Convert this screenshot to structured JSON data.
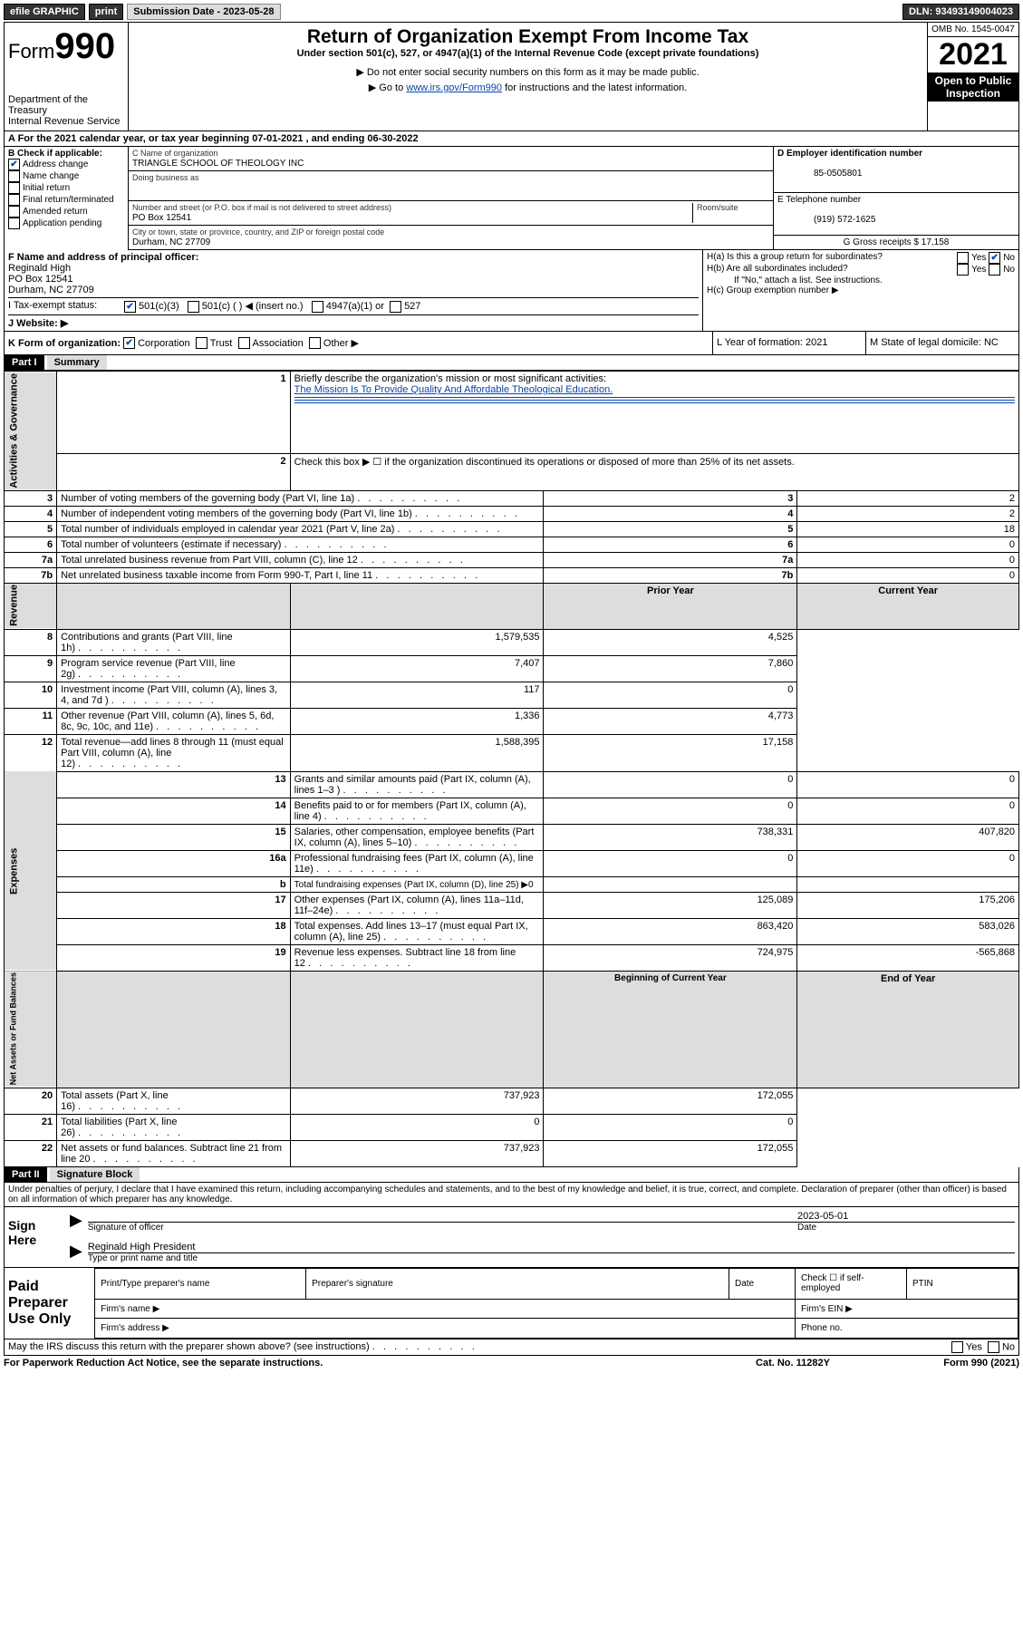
{
  "topbar": {
    "efile": "efile GRAPHIC",
    "print": "print",
    "subdate_label": "Submission Date - 2023-05-28",
    "dln": "DLN: 93493149004023"
  },
  "header": {
    "form_prefix": "Form",
    "form_no": "990",
    "dept": "Department of the Treasury",
    "irs": "Internal Revenue Service",
    "title": "Return of Organization Exempt From Income Tax",
    "sub1": "Under section 501(c), 527, or 4947(a)(1) of the Internal Revenue Code (except private foundations)",
    "sub2": "▶ Do not enter social security numbers on this form as it may be made public.",
    "sub3_pre": "▶ Go to ",
    "sub3_link": "www.irs.gov/Form990",
    "sub3_post": " for instructions and the latest information.",
    "omb": "OMB No. 1545-0047",
    "year": "2021",
    "open": "Open to Public Inspection"
  },
  "period": {
    "text": "A For the 2021 calendar year, or tax year beginning 07-01-2021   , and ending 06-30-2022"
  },
  "boxB": {
    "label": "B Check if applicable:",
    "items": [
      "Address change",
      "Name change",
      "Initial return",
      "Final return/terminated",
      "Amended return",
      "Application pending"
    ],
    "checked": [
      true,
      false,
      false,
      false,
      false,
      false
    ]
  },
  "boxC": {
    "label": "C Name of organization",
    "name": "TRIANGLE SCHOOL OF THEOLOGY INC",
    "dba_label": "Doing business as",
    "addr_label": "Number and street (or P.O. box if mail is not delivered to street address)",
    "room_label": "Room/suite",
    "addr": "PO Box 12541",
    "city_label": "City or town, state or province, country, and ZIP or foreign postal code",
    "city": "Durham, NC  27709"
  },
  "boxD": {
    "label": "D Employer identification number",
    "val": "85-0505801"
  },
  "boxE": {
    "label": "E Telephone number",
    "val": "(919) 572-1625"
  },
  "boxG": {
    "label": "G Gross receipts $ 17,158"
  },
  "boxF": {
    "label": "F Name and address of principal officer:",
    "name": "Reginald High",
    "addr": "PO Box 12541",
    "city": "Durham, NC  27709"
  },
  "boxH": {
    "ha": "H(a)  Is this a group return for subordinates?",
    "hb": "H(b)  Are all subordinates included?",
    "hb_note": "If \"No,\" attach a list. See instructions.",
    "hc": "H(c)  Group exemption number ▶"
  },
  "rowI": {
    "label": "I      Tax-exempt status:",
    "opts": [
      "501(c)(3)",
      "501(c) (  ) ◀ (insert no.)",
      "4947(a)(1) or",
      "527"
    ]
  },
  "rowJ": {
    "label": "J     Website: ▶"
  },
  "rowK": {
    "label": "K Form of organization:",
    "opts": [
      "Corporation",
      "Trust",
      "Association",
      "Other ▶"
    ]
  },
  "boxL": {
    "label": "L Year of formation: 2021"
  },
  "boxM": {
    "label": "M State of legal domicile: NC"
  },
  "part1": {
    "hdr": "Part I",
    "title": "Summary",
    "tabs": [
      "Activities & Governance",
      "Revenue",
      "Expenses",
      "Net Assets or\nFund Balances"
    ],
    "q1": "Briefly describe the organization's mission or most significant activities:",
    "mission": "The Mission Is To Provide Quality And Affordable Theological Education.",
    "q2": "Check this box ▶ ☐  if the organization discontinued its operations or disposed of more than 25% of its net assets.",
    "lines_gov": [
      {
        "n": "3",
        "t": "Number of voting members of the governing body (Part VI, line 1a)",
        "v": "2"
      },
      {
        "n": "4",
        "t": "Number of independent voting members of the governing body (Part VI, line 1b)",
        "v": "2"
      },
      {
        "n": "5",
        "t": "Total number of individuals employed in calendar year 2021 (Part V, line 2a)",
        "v": "18"
      },
      {
        "n": "6",
        "t": "Total number of volunteers (estimate if necessary)",
        "v": "0"
      },
      {
        "n": "7a",
        "t": "Total unrelated business revenue from Part VIII, column (C), line 12",
        "v": "0"
      },
      {
        "n": "7b",
        "t": "Net unrelated business taxable income from Form 990-T, Part I, line 11",
        "v": "0"
      }
    ],
    "col_hdr": {
      "prior": "Prior Year",
      "curr": "Current Year",
      "beg": "Beginning of Current Year",
      "end": "End of Year"
    },
    "lines_rev": [
      {
        "n": "8",
        "t": "Contributions and grants (Part VIII, line 1h)",
        "p": "1,579,535",
        "c": "4,525"
      },
      {
        "n": "9",
        "t": "Program service revenue (Part VIII, line 2g)",
        "p": "7,407",
        "c": "7,860"
      },
      {
        "n": "10",
        "t": "Investment income (Part VIII, column (A), lines 3, 4, and 7d )",
        "p": "117",
        "c": "0"
      },
      {
        "n": "11",
        "t": "Other revenue (Part VIII, column (A), lines 5, 6d, 8c, 9c, 10c, and 11e)",
        "p": "1,336",
        "c": "4,773"
      },
      {
        "n": "12",
        "t": "Total revenue—add lines 8 through 11 (must equal Part VIII, column (A), line 12)",
        "p": "1,588,395",
        "c": "17,158"
      }
    ],
    "lines_exp": [
      {
        "n": "13",
        "t": "Grants and similar amounts paid (Part IX, column (A), lines 1–3 )",
        "p": "0",
        "c": "0"
      },
      {
        "n": "14",
        "t": "Benefits paid to or for members (Part IX, column (A), line 4)",
        "p": "0",
        "c": "0"
      },
      {
        "n": "15",
        "t": "Salaries, other compensation, employee benefits (Part IX, column (A), lines 5–10)",
        "p": "738,331",
        "c": "407,820"
      },
      {
        "n": "16a",
        "t": "Professional fundraising fees (Part IX, column (A), line 11e)",
        "p": "0",
        "c": "0"
      },
      {
        "n": "b",
        "t": "Total fundraising expenses (Part IX, column (D), line 25) ▶0",
        "p": "",
        "c": "",
        "shade": true
      },
      {
        "n": "17",
        "t": "Other expenses (Part IX, column (A), lines 11a–11d, 11f–24e)",
        "p": "125,089",
        "c": "175,206"
      },
      {
        "n": "18",
        "t": "Total expenses. Add lines 13–17 (must equal Part IX, column (A), line 25)",
        "p": "863,420",
        "c": "583,026"
      },
      {
        "n": "19",
        "t": "Revenue less expenses. Subtract line 18 from line 12",
        "p": "724,975",
        "c": "-565,868"
      }
    ],
    "lines_net": [
      {
        "n": "20",
        "t": "Total assets (Part X, line 16)",
        "p": "737,923",
        "c": "172,055"
      },
      {
        "n": "21",
        "t": "Total liabilities (Part X, line 26)",
        "p": "0",
        "c": "0"
      },
      {
        "n": "22",
        "t": "Net assets or fund balances. Subtract line 21 from line 20",
        "p": "737,923",
        "c": "172,055"
      }
    ]
  },
  "part2": {
    "hdr": "Part II",
    "title": "Signature Block",
    "decl": "Under penalties of perjury, I declare that I have examined this return, including accompanying schedules and statements, and to the best of my knowledge and belief, it is true, correct, and complete. Declaration of preparer (other than officer) is based on all information of which preparer has any knowledge.",
    "sign_here": "Sign Here",
    "sig_officer": "Signature of officer",
    "sig_date": "2023-05-01",
    "date_label": "Date",
    "sig_name": "Reginald High  President",
    "sig_name_label": "Type or print name and title",
    "paid": "Paid Preparer Use Only",
    "p_cols": [
      "Print/Type preparer's name",
      "Preparer's signature",
      "Date"
    ],
    "p_check": "Check ☐ if self-employed",
    "ptin": "PTIN",
    "firm_name": "Firm's name   ▶",
    "firm_ein": "Firm's EIN ▶",
    "firm_addr": "Firm's address ▶",
    "phone": "Phone no.",
    "discuss": "May the IRS discuss this return with the preparer shown above? (see instructions)"
  },
  "footer": {
    "pra": "For Paperwork Reduction Act Notice, see the separate instructions.",
    "cat": "Cat. No. 11282Y",
    "form": "Form 990 (2021)"
  }
}
